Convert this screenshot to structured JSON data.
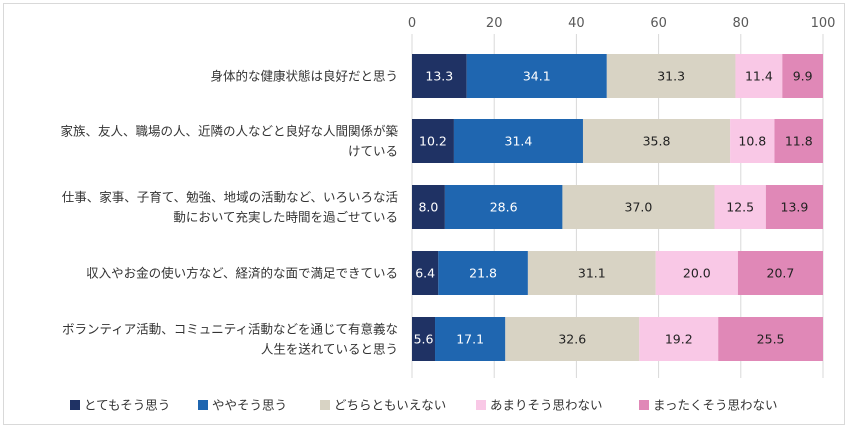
{
  "chart_data": {
    "type": "bar",
    "orientation": "horizontal",
    "stacked": true,
    "categories": [
      [
        "身体的な健康状態は良好だと思う"
      ],
      [
        "家族、友人、職場の人、近隣の人などと良好な人間関係が築",
        "けている"
      ],
      [
        "仕事、家事、子育て、勉強、地域の活動など、いろいろな活",
        "動において充実した時間を過ごせている"
      ],
      [
        "収入やお金の使い方など、経済的な面で満足できている"
      ],
      [
        "ボランティア活動、コミュニティ活動などを通じて有意義な",
        "人生を送れていると思う"
      ]
    ],
    "series": [
      {
        "name": "とてもそう思う",
        "color": "#1f3264",
        "label_color": "#ffffff",
        "values": [
          13.3,
          10.2,
          8.0,
          6.4,
          5.6
        ]
      },
      {
        "name": "ややそう思う",
        "color": "#1f66b0",
        "label_color": "#ffffff",
        "values": [
          34.1,
          31.4,
          28.6,
          21.8,
          17.1
        ]
      },
      {
        "name": "どちらともいえない",
        "color": "#d8d3c4",
        "label_color": "#222222",
        "values": [
          31.3,
          35.8,
          37.0,
          31.1,
          32.6
        ]
      },
      {
        "name": "あまりそう思わない",
        "color": "#f9c8e6",
        "label_color": "#222222",
        "values": [
          11.4,
          10.8,
          12.5,
          20.0,
          19.2
        ]
      },
      {
        "name": "まったくそう思わない",
        "color": "#e088b7",
        "label_color": "#222222",
        "values": [
          9.9,
          11.8,
          13.9,
          20.7,
          25.5
        ]
      }
    ],
    "xlim": [
      0,
      100
    ],
    "xticks": [
      0,
      20,
      40,
      60,
      80,
      100
    ],
    "x_axis_position": "top",
    "grid": true,
    "legend_position": "bottom",
    "title": "",
    "xlabel": "",
    "ylabel": ""
  }
}
